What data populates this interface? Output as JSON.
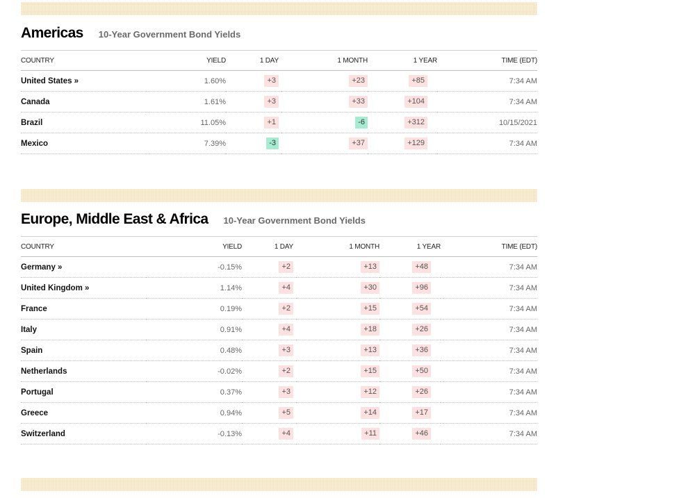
{
  "americas": {
    "title": "Americas",
    "subtitle": "10-Year Government Bond Yields",
    "columns": [
      "COUNTRY",
      "YIELD",
      "1 DAY",
      "1 MONTH",
      "1 YEAR",
      "TIME (EDT)"
    ],
    "rows": [
      {
        "country": "United States »",
        "yield": "1.60%",
        "day": "+3",
        "month": "+23",
        "year": "+85",
        "time": "7:34 AM"
      },
      {
        "country": "Canada",
        "yield": "1.61%",
        "day": "+3",
        "month": "+33",
        "year": "+104",
        "time": "7:34 AM"
      },
      {
        "country": "Brazil",
        "yield": "11.05%",
        "day": "+1",
        "month": "-6",
        "year": "+312",
        "time": "10/15/2021"
      },
      {
        "country": "Mexico",
        "yield": "7.39%",
        "day": "-3",
        "month": "+37",
        "year": "+129",
        "time": "7:34 AM"
      }
    ]
  },
  "emea": {
    "title": "Europe, Middle East & Africa",
    "subtitle": "10-Year Government Bond Yields",
    "columns": [
      "COUNTRY",
      "YIELD",
      "1 DAY",
      "1 MONTH",
      "1 YEAR",
      "TIME (EDT)"
    ],
    "rows": [
      {
        "country": "Germany »",
        "yield": "-0.15%",
        "day": "+2",
        "month": "+13",
        "year": "+48",
        "time": "7:34 AM"
      },
      {
        "country": "United Kingdom »",
        "yield": "1.14%",
        "day": "+4",
        "month": "+30",
        "year": "+96",
        "time": "7:34 AM"
      },
      {
        "country": "France",
        "yield": "0.19%",
        "day": "+2",
        "month": "+15",
        "year": "+54",
        "time": "7:34 AM"
      },
      {
        "country": "Italy",
        "yield": "0.91%",
        "day": "+4",
        "month": "+18",
        "year": "+26",
        "time": "7:34 AM"
      },
      {
        "country": "Spain",
        "yield": "0.48%",
        "day": "+3",
        "month": "+13",
        "year": "+36",
        "time": "7:34 AM"
      },
      {
        "country": "Netherlands",
        "yield": "-0.02%",
        "day": "+2",
        "month": "+15",
        "year": "+50",
        "time": "7:34 AM"
      },
      {
        "country": "Portugal",
        "yield": "0.37%",
        "day": "+3",
        "month": "+12",
        "year": "+26",
        "time": "7:34 AM"
      },
      {
        "country": "Greece",
        "yield": "0.94%",
        "day": "+5",
        "month": "+14",
        "year": "+17",
        "time": "7:34 AM"
      },
      {
        "country": "Switzerland",
        "yield": "-0.13%",
        "day": "+4",
        "month": "+11",
        "year": "+46",
        "time": "7:34 AM"
      }
    ]
  },
  "colors": {
    "positive_bg": "#fde0e0",
    "negative_bg": "#a6ecd3",
    "stripe": "#f4d9a6"
  }
}
